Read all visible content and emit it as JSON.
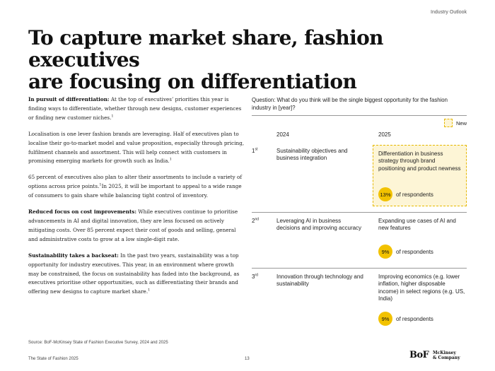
{
  "header": {
    "section": "Industry Outlook"
  },
  "title": {
    "line1": "To capture market share, fashion executives",
    "line2": "are focusing on differentiation"
  },
  "body": {
    "p1_heading": "In pursuit of differentiation:",
    "p1_text": " At the top of executives’ priorities this year is finding ways to differentiate, whether through new designs, customer experiences or finding new customer niches.",
    "p2_text": "Localisation is one lever fashion brands are leveraging. Half of executives plan to localise their go-to-market model and value proposition, especially through pricing, fulfilment channels and assortment. This will help connect with customers in promising emerging markets for growth such as India.",
    "p3_text_a": "65 percent of executives also plan to alter their assortments to include a variety of options across price points.",
    "p3_text_b": "In 2025, it will be important to appeal to a wide range of consumers to gain share while balancing tight control of inventory.",
    "p4_heading": "Reduced focus on cost improvements:",
    "p4_text": " While executives continue to prioritise advancements in AI and digital innovation, they are less focused on actively mitigating costs. Over 85 percent expect their cost of goods and selling, general and administrative costs to grow at a low single-digit rate.",
    "p5_heading": "Sustainability takes a backseat:",
    "p5_text": " In the past two years, sustainability was a top opportunity for industry executives. This year, in an environment where growth may be constrained, the focus on sustainability has faded into the background, as executives prioritise other opportunities, such as differentiating their brands and offering new designs to capture market share.",
    "footnote_mark": "1"
  },
  "chart": {
    "question": "Question: What do you think will be the single biggest opportunity for the fashion industry in [year]?",
    "legend_new": "New",
    "col_2024": "2024",
    "col_2025": "2025",
    "rows": [
      {
        "rank_num": "1",
        "rank_suffix": "st",
        "y2024": "Sustainability objectives and business integration",
        "y2025": "Differentiation in business strategy through brand positioning and product newness",
        "pct": "13%",
        "pct_label": "of respondents"
      },
      {
        "rank_num": "2",
        "rank_suffix": "nd",
        "y2024": "Leveraging AI in business decisions and improving accuracy",
        "y2025": "Expanding use cases of AI and new features",
        "pct": "9%",
        "pct_label": "of respondents"
      },
      {
        "rank_num": "3",
        "rank_suffix": "rd",
        "y2024": "Innovation through technology and sustainability",
        "y2025": "Improving economics (e.g. lower inflation, higher disposable income) in select regions (e.g. US, India)",
        "pct": "9%",
        "pct_label": "of respondents"
      }
    ],
    "accent_color": "#f2c200",
    "highlight_color": "#fdf5d6"
  },
  "source": "Source: BoF-McKinsey State of Fashion Executive Survey, 2024 and 2025",
  "footer": {
    "publication": "The State of Fashion 2025",
    "page": "13",
    "logo_bof": "BoF",
    "logo_mck_1": "McKinsey",
    "logo_mck_2": "& Company"
  }
}
